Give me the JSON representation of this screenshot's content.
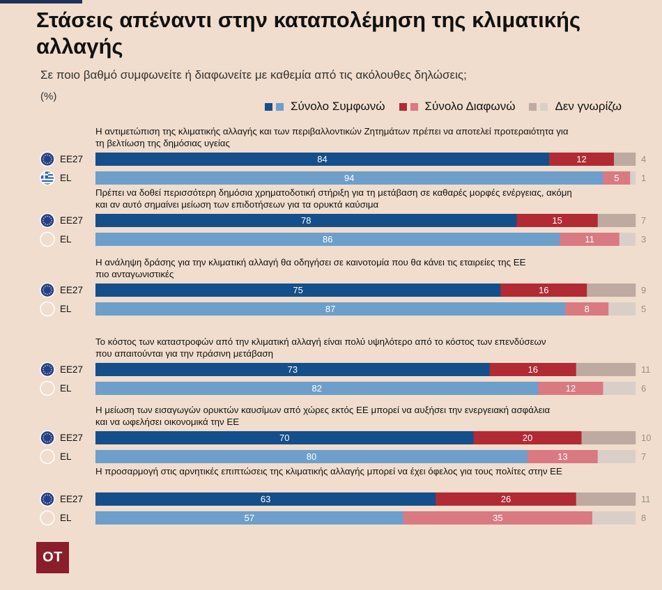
{
  "title": "Στάσεις απέναντι στην καταπολέμηση της κλιματικής αλλαγής",
  "subtitle": "Σε ποιο βαθμό συμφωνείτε ή διαφωνείτε με καθεμία από τις ακόλουθες δηλώσεις;",
  "unit": "(%)",
  "logo": "OT",
  "colors": {
    "agree_eu": "#144f8b",
    "agree_el": "#6d9fca",
    "disagree_eu": "#b12a34",
    "disagree_el": "#d97a83",
    "dk_eu": "#bfaaa1",
    "dk_el": "#dacfc8",
    "eu_flag": "#1f3f99",
    "eu_star": "#f2c21a"
  },
  "legend": {
    "agree": "Σύνολο Συμφωνώ",
    "disagree": "Σύνολο Διαφωνώ",
    "dont_know": "Δεν γνωρίζω"
  },
  "chart_data": {
    "type": "stacked-bar-horizontal",
    "title": "Στάσεις απέναντι στην καταπολέμηση της κλιματικής αλλαγής",
    "series": [
      "Σύνολο Συμφωνώ",
      "Σύνολο Διαφωνώ",
      "Δεν γνωρίζω"
    ],
    "groups": [
      {
        "question": [
          "Η αντιμετώπιση της κλιματικής αλλαγής και των περιβαλλοντικών Ζητημάτων πρέπει να αποτελεί προτεραιότητα για",
          "τη βελτίωση της δημόσιας υγείας"
        ],
        "rows": [
          {
            "label": "ΕΕ27",
            "flag": "eu",
            "values": [
              84,
              12,
              4
            ]
          },
          {
            "label": "EL",
            "flag": "gr",
            "values": [
              94,
              5,
              1
            ]
          }
        ]
      },
      {
        "question": [
          "Πρέπει να δοθεί περισσότερη δημόσια χρηματοδοτική στήριξη για τη μετάβαση σε καθαρές μορφές ενέργειας,  ακόμη",
          "και αν αυτό σημαίνει μείωση των επιδοτήσεων για τα ορυκτά καύσιμα"
        ],
        "rows": [
          {
            "label": "ΕΕ27",
            "flag": "eu",
            "values": [
              78,
              15,
              7
            ]
          },
          {
            "label": "EL",
            "flag": "gr",
            "values": [
              86,
              11,
              3
            ]
          }
        ]
      },
      {
        "question": [
          "Η ανάληψη δράσης για την κλιματική αλλαγή θα οδηγήσει σε καινοτομία που θα κάνει τις εταιρείες της ΕΕ",
          "πιο ανταγωνιστικές"
        ],
        "rows": [
          {
            "label": "ΕΕ27",
            "flag": "eu",
            "values": [
              75,
              16,
              9
            ]
          },
          {
            "label": "EL",
            "flag": "gr",
            "values": [
              87,
              8,
              5
            ]
          }
        ]
      },
      {
        "question": [
          "Το κόστος των καταστροφών από την κλιματική αλλαγή είναι πολύ υψηλότερο από το κόστος των επενδύσεων",
          "που απαιτούνται για την πράσινη μετάβαση"
        ],
        "rows": [
          {
            "label": "ΕΕ27",
            "flag": "eu",
            "values": [
              73,
              16,
              11
            ]
          },
          {
            "label": "EL",
            "flag": "gr",
            "values": [
              82,
              12,
              6
            ]
          }
        ]
      },
      {
        "question": [
          "Η μείωση των εισαγωγών ορυκτών καυσίμων από χώρες εκτός ΕΕ μπορεί να αυξήσει την ενεργειακή ασφάλεια",
          "και να ωφελήσει οικονομικά την ΕΕ"
        ],
        "rows": [
          {
            "label": "ΕΕ27",
            "flag": "eu",
            "values": [
              70,
              20,
              10
            ]
          },
          {
            "label": "EL",
            "flag": "gr",
            "values": [
              80,
              13,
              7
            ]
          }
        ]
      },
      {
        "question": [
          "Η προσαρμογή στις αρνητικές επιπτώσεις της κλιματικής αλλαγής μπορεί να έχει όφελος για τους πολίτες στην ΕΕ"
        ],
        "rows": [
          {
            "label": "ΕΕ27",
            "flag": "eu",
            "values": [
              63,
              26,
              11
            ]
          },
          {
            "label": "EL",
            "flag": "gr",
            "values": [
              57,
              35,
              8
            ]
          }
        ]
      }
    ]
  }
}
